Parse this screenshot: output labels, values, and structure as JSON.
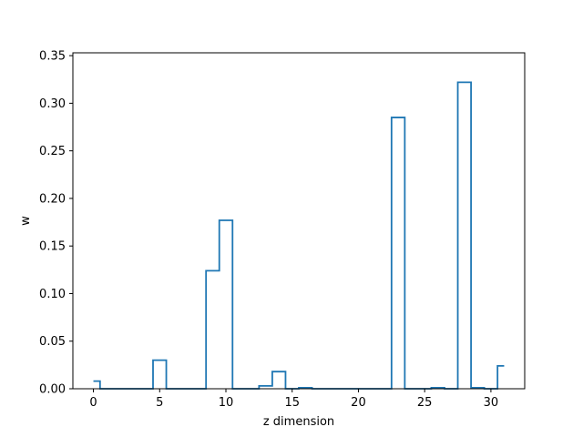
{
  "chart_data": {
    "type": "line",
    "style": "step",
    "xlabel": "z dimension",
    "ylabel": "w",
    "xlim": [
      -1.55,
      32.55
    ],
    "ylim": [
      0,
      0.353
    ],
    "x_ticks": [
      0,
      5,
      10,
      15,
      20,
      25,
      30
    ],
    "x_tick_labels": [
      "0",
      "5",
      "10",
      "15",
      "20",
      "25",
      "30"
    ],
    "y_ticks": [
      0,
      0.05,
      0.1,
      0.15,
      0.2,
      0.25,
      0.3,
      0.35
    ],
    "y_tick_labels": [
      "0.00",
      "0.05",
      "0.10",
      "0.15",
      "0.20",
      "0.25",
      "0.30",
      "0.35"
    ],
    "grid": false,
    "series": [
      {
        "color": "#1f77b4",
        "x": [
          0,
          1,
          2,
          3,
          4,
          5,
          6,
          7,
          8,
          9,
          10,
          11,
          12,
          13,
          14,
          15,
          16,
          17,
          18,
          19,
          20,
          21,
          22,
          23,
          24,
          25,
          26,
          27,
          28,
          29,
          30,
          31
        ],
        "values": [
          0.008,
          0.0,
          0.0,
          0.0,
          0.0,
          0.03,
          0.0,
          0.0,
          0.0,
          0.124,
          0.177,
          0.0,
          0.0,
          0.003,
          0.018,
          0.0,
          0.001,
          0.0,
          0.0,
          0.0,
          0.0,
          0.0,
          0.0,
          0.285,
          0.0,
          0.0,
          0.001,
          0.0,
          0.322,
          0.001,
          0.0,
          0.024
        ]
      }
    ]
  }
}
